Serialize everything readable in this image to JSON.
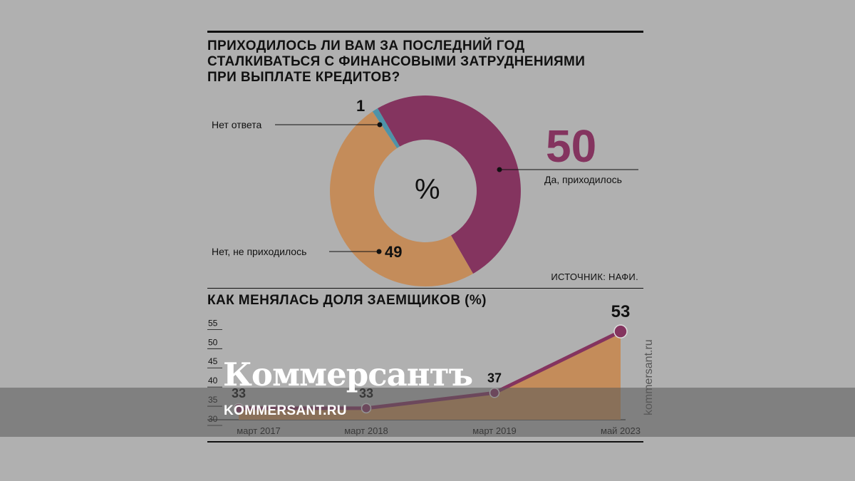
{
  "title_lines": [
    "ПРИХОДИЛОСЬ ЛИ ВАМ ЗА ПОСЛЕДНИЙ ГОД",
    "СТАЛКИВАТЬСЯ С ФИНАНСОВЫМИ ЗАТРУДНЕНИЯМИ",
    "ПРИ ВЫПЛАТЕ КРЕДИТОВ?"
  ],
  "source": "ИСТОЧНИК: НАФИ.",
  "subtitle": "КАК МЕНЯЛАСЬ ДОЛЯ ЗАЕМЩИКОВ (%)",
  "watermark": {
    "logo": "Коммерсантъ",
    "url": "KOMMERSANT.RU",
    "vertical": "kommersant.ru"
  },
  "colors": {
    "yes": "#84345f",
    "no": "#c48c5a",
    "none": "#4e93a8",
    "line": "#84345f",
    "area": "#c48c5a"
  },
  "chart_data": [
    {
      "type": "pie",
      "center_label": "%",
      "slices": [
        {
          "label": "Да, приходилось",
          "value": 50,
          "value_text": "50"
        },
        {
          "label": "Нет, не приходилось",
          "value": 49,
          "value_text": "49"
        },
        {
          "label": "Нет ответа",
          "value": 1,
          "value_text": "1"
        }
      ]
    },
    {
      "type": "area",
      "title": "КАК МЕНЯЛАСЬ ДОЛЯ ЗАЕМЩИКОВ (%)",
      "x": [
        "март 2017",
        "март 2018",
        "март 2019",
        "май 2023"
      ],
      "values": [
        33,
        33,
        37,
        53
      ],
      "value_labels": [
        "33",
        "33",
        "37",
        "53"
      ],
      "yticks": [
        "55",
        "50",
        "45",
        "40",
        "35",
        "30"
      ],
      "ylim": [
        30,
        56
      ]
    }
  ]
}
